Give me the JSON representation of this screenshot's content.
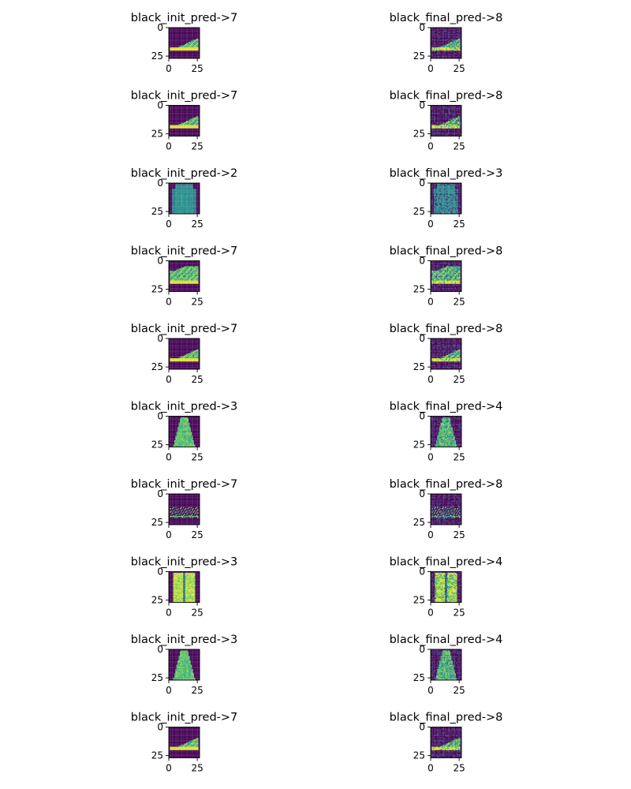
{
  "chart_data": {
    "type": "heatmap",
    "layout": {
      "rows": 10,
      "columns": 2
    },
    "colormap": "viridis",
    "axis": {
      "x_ticks": [
        "0",
        "25"
      ],
      "y_ticks": [
        "0",
        "25"
      ],
      "xlim": [
        0,
        27
      ],
      "ylim": [
        27,
        0
      ]
    },
    "panels": [
      {
        "title": "black_init_pred->7",
        "row": 0,
        "col": 0,
        "item": "sneaker"
      },
      {
        "title": "black_final_pred->8",
        "row": 0,
        "col": 1,
        "item": "sneaker"
      },
      {
        "title": "black_init_pred->7",
        "row": 1,
        "col": 0,
        "item": "sneaker"
      },
      {
        "title": "black_final_pred->8",
        "row": 1,
        "col": 1,
        "item": "sneaker"
      },
      {
        "title": "black_init_pred->2",
        "row": 2,
        "col": 0,
        "item": "pullover"
      },
      {
        "title": "black_final_pred->3",
        "row": 2,
        "col": 1,
        "item": "pullover"
      },
      {
        "title": "black_init_pred->7",
        "row": 3,
        "col": 0,
        "item": "high-top"
      },
      {
        "title": "black_final_pred->8",
        "row": 3,
        "col": 1,
        "item": "high-top"
      },
      {
        "title": "black_init_pred->7",
        "row": 4,
        "col": 0,
        "item": "sneaker"
      },
      {
        "title": "black_final_pred->8",
        "row": 4,
        "col": 1,
        "item": "sneaker"
      },
      {
        "title": "black_init_pred->3",
        "row": 5,
        "col": 0,
        "item": "dress"
      },
      {
        "title": "black_final_pred->4",
        "row": 5,
        "col": 1,
        "item": "dress"
      },
      {
        "title": "black_init_pred->7",
        "row": 6,
        "col": 0,
        "item": "sandal"
      },
      {
        "title": "black_final_pred->8",
        "row": 6,
        "col": 1,
        "item": "sandal"
      },
      {
        "title": "black_init_pred->3",
        "row": 7,
        "col": 0,
        "item": "coat"
      },
      {
        "title": "black_final_pred->4",
        "row": 7,
        "col": 1,
        "item": "coat"
      },
      {
        "title": "black_init_pred->3",
        "row": 8,
        "col": 0,
        "item": "dress"
      },
      {
        "title": "black_final_pred->4",
        "row": 8,
        "col": 1,
        "item": "dress"
      },
      {
        "title": "black_init_pred->7",
        "row": 9,
        "col": 0,
        "item": "sneaker"
      },
      {
        "title": "black_final_pred->8",
        "row": 9,
        "col": 1,
        "item": "sneaker"
      }
    ]
  }
}
